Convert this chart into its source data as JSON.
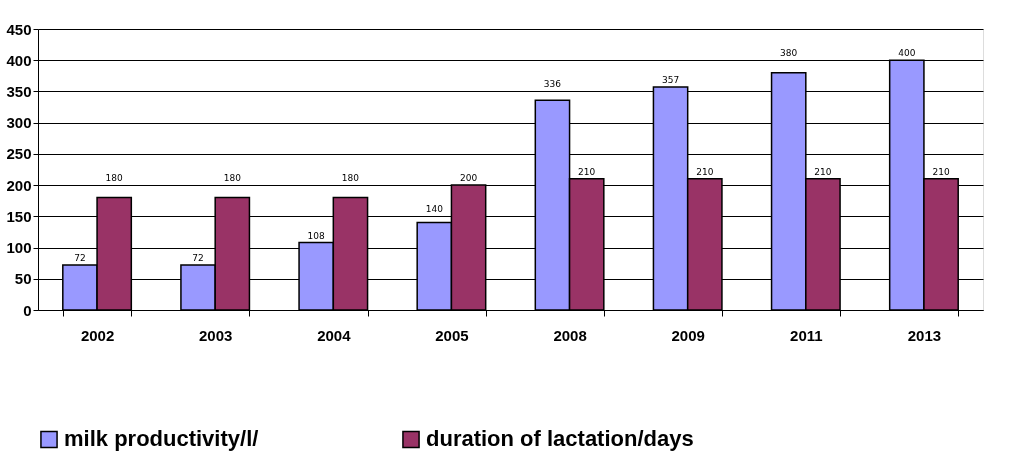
{
  "chart_data": {
    "type": "bar",
    "categories": [
      "2002",
      "2003",
      "2004",
      "2005",
      "2008",
      "2009",
      "2011",
      "2013"
    ],
    "series": [
      {
        "name": "milk productivity/l/",
        "color": "#9999ff",
        "values": [
          72,
          72,
          108,
          140,
          336,
          357,
          380,
          400
        ]
      },
      {
        "name": "duration of lactation/days",
        "color": "#993366",
        "values": [
          180,
          180,
          180,
          200,
          210,
          210,
          210,
          210
        ]
      }
    ],
    "ylim": [
      0,
      450
    ],
    "yticks": [
      0,
      50,
      100,
      150,
      200,
      250,
      300,
      350,
      400,
      450
    ],
    "grid": "y",
    "legend": "bottom",
    "data_labels": true
  }
}
